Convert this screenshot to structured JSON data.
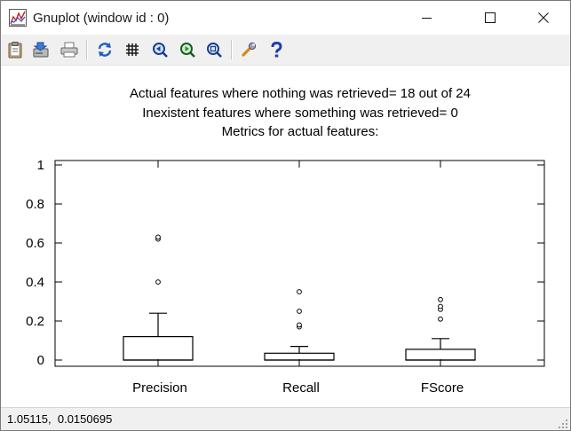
{
  "window": {
    "title": "Gnuplot (window id : 0)",
    "app_icon": "gnuplot-icon",
    "controls": [
      "minimize-icon",
      "maximize-icon",
      "close-icon"
    ]
  },
  "toolbar": {
    "buttons": [
      {
        "name": "copy-clipboard-button",
        "icon": "clipboard-icon"
      },
      {
        "name": "save-button",
        "icon": "save-icon"
      },
      {
        "name": "print-button",
        "icon": "printer-icon"
      },
      {
        "name": "replot-button",
        "icon": "refresh-icon"
      },
      {
        "name": "toggle-grid-button",
        "icon": "grid-icon"
      },
      {
        "name": "zoom-previous-button",
        "icon": "zoom-previous-icon"
      },
      {
        "name": "zoom-next-button",
        "icon": "zoom-next-icon"
      },
      {
        "name": "autoscale-button",
        "icon": "zoom-autoscale-icon"
      },
      {
        "name": "options-button",
        "icon": "wrench-icon"
      },
      {
        "name": "help-button",
        "icon": "help-icon"
      }
    ]
  },
  "plot": {
    "title_lines": [
      "Actual features where nothing was retrieved= 18 out of 24",
      "Inexistent features where something was retrieved= 0",
      "Metrics for actual features:"
    ]
  },
  "chart_data": {
    "type": "boxplot",
    "categories": [
      "Precision",
      "Recall",
      "FScore"
    ],
    "yticks": [
      "0",
      "0.2",
      "0.4",
      "0.6",
      "0.8",
      "1"
    ],
    "ylim": [
      0,
      1
    ],
    "grid": false,
    "boxes": [
      {
        "label": "Precision",
        "min": 0,
        "q1": 0,
        "median": 0,
        "q3": 0.12,
        "whisker_high": 0.24,
        "outliers": [
          0.4,
          0.62,
          0.63
        ]
      },
      {
        "label": "Recall",
        "min": 0,
        "q1": 0,
        "median": 0,
        "q3": 0.035,
        "whisker_high": 0.07,
        "outliers": [
          0.17,
          0.18,
          0.25,
          0.35
        ]
      },
      {
        "label": "FScore",
        "min": 0,
        "q1": 0,
        "median": 0,
        "q3": 0.055,
        "whisker_high": 0.11,
        "outliers": [
          0.21,
          0.26,
          0.275,
          0.31
        ]
      }
    ]
  },
  "status": {
    "coordinates": "1.05115,  0.0150695"
  }
}
